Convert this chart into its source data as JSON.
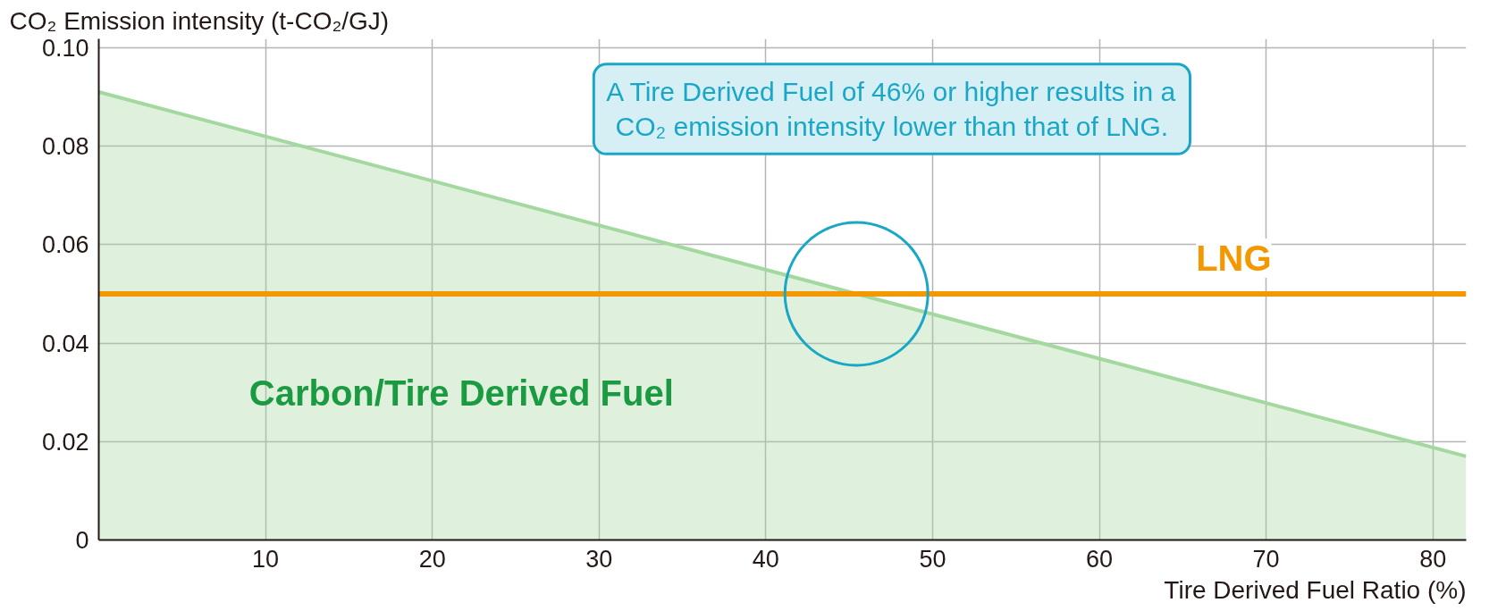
{
  "chart_data": {
    "type": "area",
    "ylabel": "CO₂ Emission intensity (t-CO₂/GJ)",
    "xlabel": "Tire Derived Fuel Ratio (%)",
    "xlim": [
      0,
      82
    ],
    "ylim": [
      0,
      0.1018
    ],
    "xticks": [
      10,
      20,
      30,
      40,
      50,
      60,
      70,
      80
    ],
    "yticks": [
      0,
      0.02,
      0.04,
      0.06,
      0.08,
      {
        "value": 0.1,
        "label": "0.10"
      }
    ],
    "grid": true,
    "x": [
      0,
      82
    ],
    "series": [
      {
        "name": "Carbon/Tire Derived Fuel",
        "color": "#a3d89f",
        "values": [
          0.091,
          0.017
        ]
      },
      {
        "name": "LNG",
        "type": "line",
        "color": "#f39800",
        "values": [
          0.05,
          0.05
        ]
      }
    ],
    "annotations": [
      "A Tire Derived Fuel of 46% or higher results in a CO₂ emission intensity lower than that of LNG."
    ]
  }
}
